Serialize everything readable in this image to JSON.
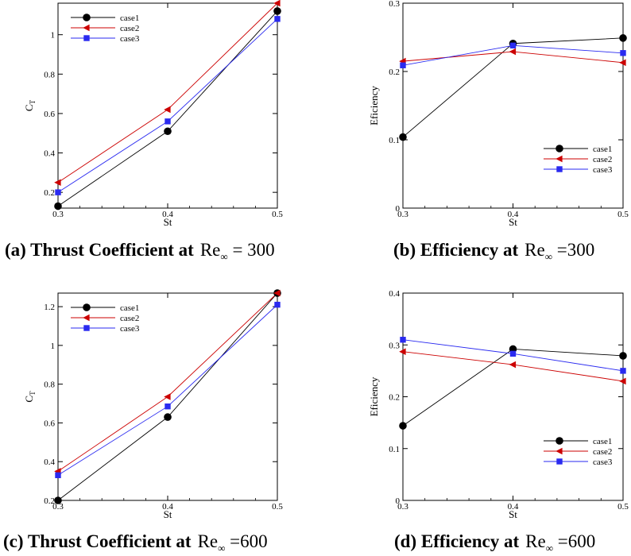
{
  "chart_data": [
    {
      "type": "line",
      "caption": {
        "label": "(a) Thrust Coefficient at",
        "re_symbol": "Re",
        "re_sub": "∞",
        "re_eq": "= 300"
      },
      "xlabel": "St",
      "ylabel": "C",
      "ylabel_sub": "T",
      "x": [
        0.3,
        0.4,
        0.5
      ],
      "xlim": [
        0.3,
        0.5
      ],
      "ylim": [
        0.12,
        1.16
      ],
      "xticks": [
        0.3,
        0.4,
        0.5
      ],
      "yticks": [
        0.2,
        0.4,
        0.6,
        0.8,
        1.0
      ],
      "ytick_labels": [
        "0.2",
        "0.4",
        "0.6",
        "0.8",
        "1"
      ],
      "legend_position": "top-left",
      "grid": false,
      "series": [
        {
          "name": "case1",
          "marker": "circle",
          "color": "#000000",
          "values": [
            0.13,
            0.51,
            1.12
          ]
        },
        {
          "name": "case2",
          "marker": "triangle-left",
          "color": "#cc0000",
          "values": [
            0.25,
            0.62,
            1.16
          ]
        },
        {
          "name": "case3",
          "marker": "square",
          "color": "#2a2af0",
          "values": [
            0.2,
            0.56,
            1.08
          ]
        }
      ]
    },
    {
      "type": "line",
      "caption": {
        "label": "(b) Efficiency at",
        "re_symbol": "Re",
        "re_sub": "∞",
        "re_eq": "=300"
      },
      "xlabel": "St",
      "ylabel": "Eficiency",
      "ylabel_sub": "",
      "x": [
        0.3,
        0.4,
        0.5
      ],
      "xlim": [
        0.3,
        0.5
      ],
      "ylim": [
        0,
        0.3
      ],
      "xticks": [
        0.3,
        0.4,
        0.5
      ],
      "yticks": [
        0,
        0.1,
        0.2,
        0.3
      ],
      "ytick_labels": [
        "0",
        "0.1",
        "0.2",
        "0.3"
      ],
      "legend_position": "bottom-right",
      "grid": false,
      "series": [
        {
          "name": "case1",
          "marker": "circle",
          "color": "#000000",
          "values": [
            0.104,
            0.241,
            0.249
          ]
        },
        {
          "name": "case2",
          "marker": "triangle-left",
          "color": "#cc0000",
          "values": [
            0.215,
            0.229,
            0.213
          ]
        },
        {
          "name": "case3",
          "marker": "square",
          "color": "#2a2af0",
          "values": [
            0.209,
            0.238,
            0.227
          ]
        }
      ]
    },
    {
      "type": "line",
      "caption": {
        "label": "(c) Thrust Coefficient at",
        "re_symbol": "Re",
        "re_sub": "∞",
        "re_eq": "=600"
      },
      "xlabel": "St",
      "ylabel": "C",
      "ylabel_sub": "T",
      "x": [
        0.3,
        0.4,
        0.5
      ],
      "xlim": [
        0.3,
        0.5
      ],
      "ylim": [
        0.2,
        1.27
      ],
      "xticks": [
        0.3,
        0.4,
        0.5
      ],
      "yticks": [
        0.2,
        0.4,
        0.6,
        0.8,
        1.0,
        1.2
      ],
      "ytick_labels": [
        "0.2",
        "0.4",
        "0.6",
        "0.8",
        "1",
        "1.2"
      ],
      "legend_position": "top-left",
      "grid": false,
      "series": [
        {
          "name": "case1",
          "marker": "circle",
          "color": "#000000",
          "values": [
            0.2,
            0.63,
            1.27
          ]
        },
        {
          "name": "case2",
          "marker": "triangle-left",
          "color": "#cc0000",
          "values": [
            0.35,
            0.735,
            1.27
          ]
        },
        {
          "name": "case3",
          "marker": "square",
          "color": "#2a2af0",
          "values": [
            0.33,
            0.685,
            1.21
          ]
        }
      ]
    },
    {
      "type": "line",
      "caption": {
        "label": "(d) Efficiency at",
        "re_symbol": "Re",
        "re_sub": "∞",
        "re_eq": "=600"
      },
      "xlabel": "St",
      "ylabel": "Eficiency",
      "ylabel_sub": "",
      "x": [
        0.3,
        0.4,
        0.5
      ],
      "xlim": [
        0.3,
        0.5
      ],
      "ylim": [
        0,
        0.4
      ],
      "xticks": [
        0.3,
        0.4,
        0.5
      ],
      "yticks": [
        0,
        0.1,
        0.2,
        0.3,
        0.4
      ],
      "ytick_labels": [
        "0",
        "0.1",
        "0.2",
        "0.3",
        "0.4"
      ],
      "legend_position": "bottom-right",
      "grid": false,
      "series": [
        {
          "name": "case1",
          "marker": "circle",
          "color": "#000000",
          "values": [
            0.144,
            0.292,
            0.279
          ]
        },
        {
          "name": "case2",
          "marker": "triangle-left",
          "color": "#cc0000",
          "values": [
            0.287,
            0.262,
            0.23
          ]
        },
        {
          "name": "case3",
          "marker": "square",
          "color": "#2a2af0",
          "values": [
            0.31,
            0.283,
            0.25
          ]
        }
      ]
    }
  ]
}
